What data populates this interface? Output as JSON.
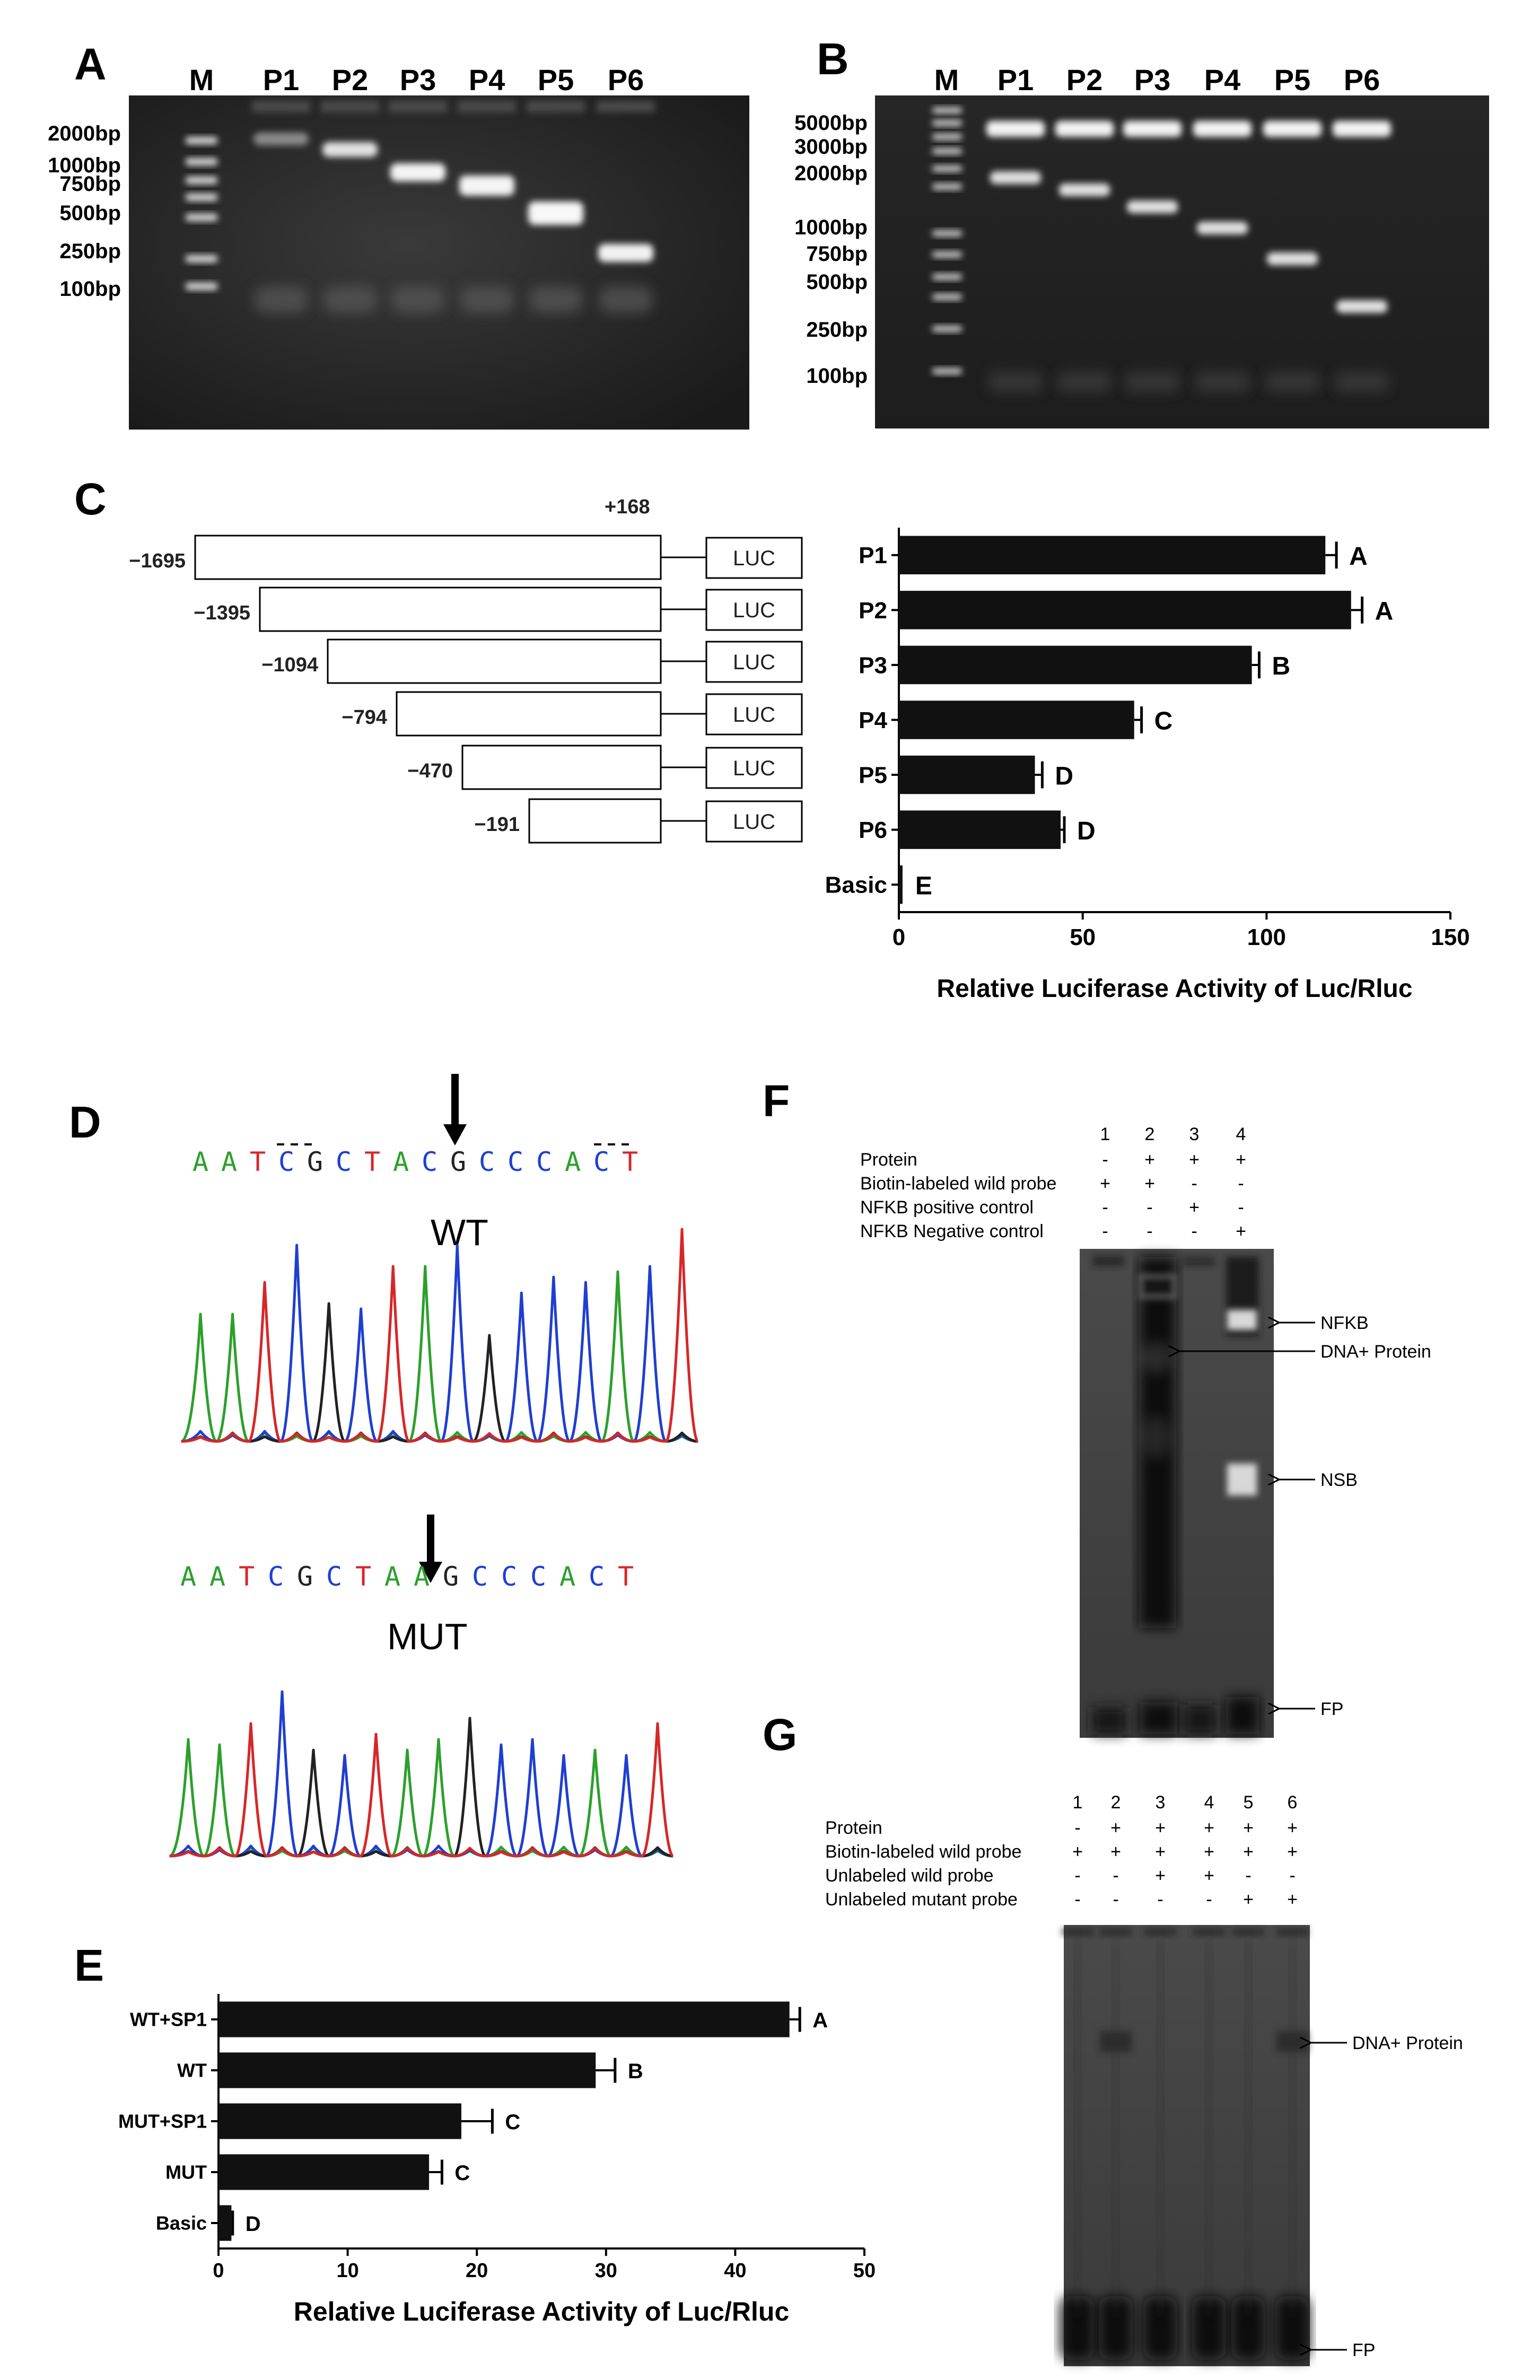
{
  "panels": {
    "A": {
      "letter": "A",
      "lanes": [
        "M",
        "P1",
        "P2",
        "P3",
        "P4",
        "P5",
        "P6"
      ],
      "markers": [
        "2000bp",
        "1000bp",
        "750bp",
        "500bp",
        "250bp",
        "100bp"
      ]
    },
    "B": {
      "letter": "B",
      "lanes": [
        "M",
        "P1",
        "P2",
        "P3",
        "P4",
        "P5",
        "P6"
      ],
      "markers": [
        "5000bp",
        "3000bp",
        "2000bp",
        "1000bp",
        "750bp",
        "500bp",
        "250bp",
        "100bp"
      ]
    },
    "C": {
      "letter": "C",
      "end_label": "+168",
      "constructs": [
        {
          "start": "−1695",
          "tag": "LUC"
        },
        {
          "start": "−1395",
          "tag": "LUC"
        },
        {
          "start": "−1094",
          "tag": "LUC"
        },
        {
          "start": "−794",
          "tag": "LUC"
        },
        {
          "start": "−470",
          "tag": "LUC"
        },
        {
          "start": "−191",
          "tag": "LUC"
        }
      ]
    },
    "D": {
      "letter": "D",
      "wt_label": "WT",
      "mut_label": "MUT",
      "wt_sequence": [
        "A",
        "A",
        "T",
        "C",
        "G",
        "C",
        "T",
        "A",
        "C",
        "G",
        "C",
        "C",
        "C",
        "A",
        "C",
        "T"
      ],
      "mut_sequence": [
        "A",
        "A",
        "T",
        "C",
        "G",
        "C",
        "T",
        "A",
        "A",
        "G",
        "C",
        "C",
        "C",
        "A",
        "C",
        "T"
      ]
    },
    "E": {
      "letter": "E"
    },
    "F": {
      "letter": "F",
      "lane_numbers": [
        "1",
        "2",
        "3",
        "4"
      ],
      "rows": [
        {
          "label": "Protein",
          "marks": [
            "-",
            "+",
            "+",
            "+"
          ]
        },
        {
          "label": "Biotin-labeled wild probe",
          "marks": [
            "+",
            "+",
            "-",
            "-"
          ]
        },
        {
          "label": "NFKB positive control",
          "marks": [
            "-",
            "-",
            "+",
            "-"
          ]
        },
        {
          "label": "NFKB Negative control",
          "marks": [
            "-",
            "-",
            "-",
            "+"
          ]
        }
      ],
      "annotations": [
        "NFKB",
        "DNA+ Protein",
        "NSB",
        "FP"
      ]
    },
    "G": {
      "letter": "G",
      "lane_numbers": [
        "1",
        "2",
        "3",
        "4",
        "5",
        "6"
      ],
      "rows": [
        {
          "label": "Protein",
          "marks": [
            "-",
            "+",
            "+",
            "+",
            "+",
            "+"
          ]
        },
        {
          "label": "Biotin-labeled wild probe",
          "marks": [
            "+",
            "+",
            "+",
            "+",
            "+",
            "+"
          ]
        },
        {
          "label": "Unlabeled wild probe",
          "marks": [
            "-",
            "-",
            "+",
            "+",
            "-",
            "-"
          ]
        },
        {
          "label": "Unlabeled mutant probe",
          "marks": [
            "-",
            "-",
            "-",
            "-",
            "+",
            "+"
          ]
        }
      ],
      "annotations": [
        "DNA+ Protein",
        "FP"
      ]
    }
  },
  "chart_data": [
    {
      "id": "C",
      "type": "bar",
      "orientation": "horizontal",
      "categories": [
        "P1",
        "P2",
        "P3",
        "P4",
        "P5",
        "P6",
        "Basic"
      ],
      "values": [
        116,
        123,
        96,
        64,
        37,
        44,
        1
      ],
      "error": [
        3,
        3,
        2,
        2,
        2,
        1,
        0
      ],
      "letters": [
        "A",
        "A",
        "B",
        "C",
        "D",
        "D",
        "E"
      ],
      "xlim": [
        0,
        150
      ],
      "xticks": [
        "0",
        "50",
        "100",
        "150"
      ],
      "xlabel": "Relative Luciferase Activity of Luc/Rluc",
      "bar_color": "#111111"
    },
    {
      "id": "E",
      "type": "bar",
      "orientation": "horizontal",
      "categories": [
        "WT+SP1",
        "WT",
        "MUT+SP1",
        "MUT",
        "Basic"
      ],
      "values": [
        44.2,
        29.2,
        18.8,
        16.3,
        1.0
      ],
      "error": [
        0.8,
        1.5,
        2.4,
        1.0,
        0.1
      ],
      "letters": [
        "A",
        "B",
        "C",
        "C",
        "D"
      ],
      "xlim": [
        0,
        50
      ],
      "xticks": [
        "0",
        "10",
        "20",
        "30",
        "40",
        "50"
      ],
      "xlabel": "Relative Luciferase Activity of Luc/Rluc",
      "bar_color": "#111111"
    }
  ]
}
